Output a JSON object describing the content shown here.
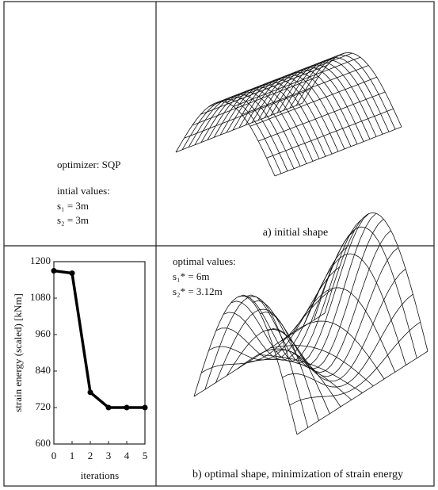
{
  "panel_a": {
    "optimizer": "optimizer:  SQP",
    "heading": "intial values:",
    "values": [
      "s₁ = 3m",
      "s₂ = 3m"
    ],
    "caption": "a) initial shape"
  },
  "panel_b": {
    "heading": "optimal values:",
    "values": [
      "s₁* = 6m",
      "s₂* = 3.12m"
    ],
    "caption": "b) optimal shape, minimization of strain energy"
  },
  "chart_data": {
    "type": "line",
    "x_label": "iterations",
    "y_label": "strain energy (scaled) [kNm]",
    "x": [
      0,
      1,
      2,
      3,
      4,
      5
    ],
    "values": [
      1170,
      1162,
      770,
      720,
      720,
      720
    ],
    "color": "#000000",
    "xlim": [
      0,
      5
    ],
    "xticks": [
      0,
      1,
      2,
      3,
      4,
      5
    ],
    "ylim": [
      600,
      1200
    ],
    "yticks": [
      600,
      720,
      840,
      960,
      1080,
      1200
    ],
    "grid": false
  }
}
